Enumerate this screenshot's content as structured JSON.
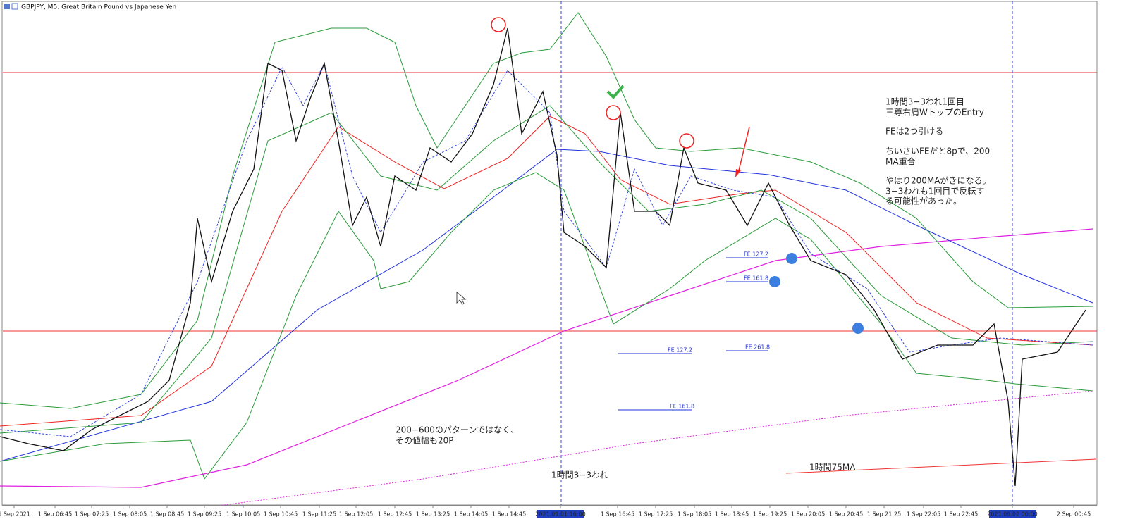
{
  "chart_data": {
    "type": "candlestick",
    "title": "GBPJPY, M5:  Great Britain Pound vs Japanese Yen",
    "categories": [
      "1 Sep 2021",
      "1 Sep 06:45",
      "1 Sep 07:25",
      "1 Sep 08:05",
      "1 Sep 08:45",
      "1 Sep 09:25",
      "1 Sep 10:05",
      "1 Sep 10:45",
      "1 Sep 11:25",
      "1 Sep 12:05",
      "1 Sep 12:45",
      "1 Sep 13:25",
      "1 Sep 14:05",
      "1 Sep 14:45",
      "2021.09.01 16:00",
      "1 Sep 16:45",
      "1 Sep 17:25",
      "1 Sep 18:05",
      "1 Sep 18:45",
      "1 Sep 19:25",
      "1 Sep 20:05",
      "1 Sep 20:45",
      "1 Sep 21:25",
      "1 Sep 22:05",
      "1 Sep 22:45",
      "2021.09.02 00:00",
      "2 Sep 00:45"
    ],
    "annotations": [
      "1時間3−3われ1回目",
      "三尊右肩WトップのEntry",
      "FEは2つ引ける",
      "ちいさいFEだと8pで、200",
      "MA重合",
      "やはり200MAがきになる。",
      "3−3われも1回目で反転す",
      "る可能性があった。",
      "200−600のパターンではなく、",
      "その値幅も20P",
      "1時間3−3われ",
      "1時間75MA"
    ],
    "fe_labels": [
      "FE  127.2",
      "FE  161.8",
      "FE  261.8",
      "FE  127.2",
      "FE  161.8"
    ]
  }
}
